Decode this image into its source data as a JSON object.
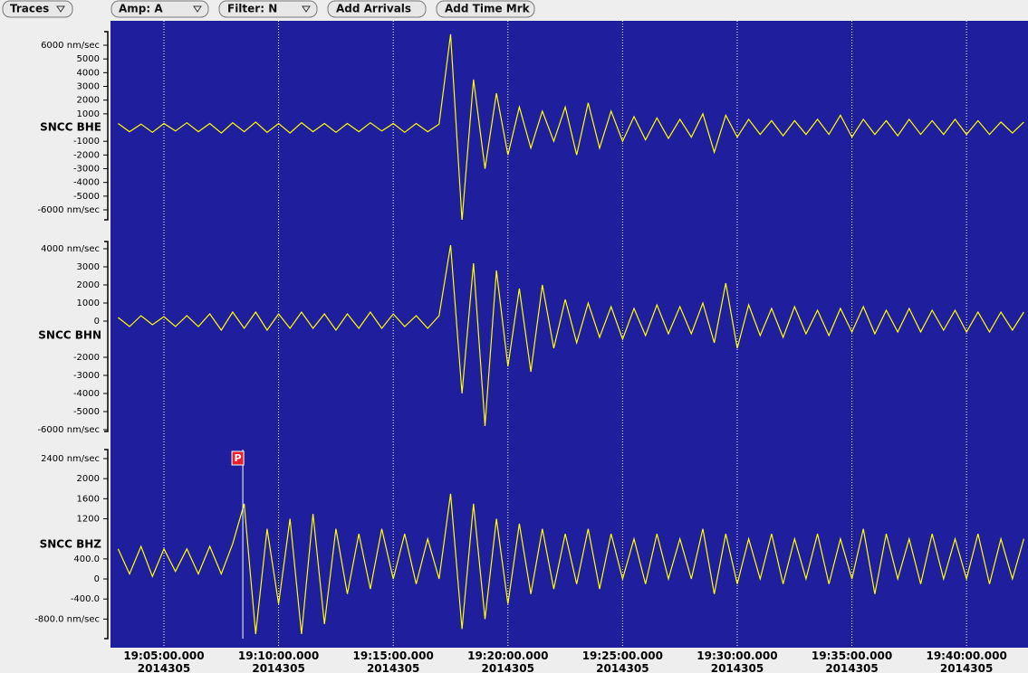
{
  "toolbar": {
    "buttons": [
      "Traces",
      "Amp: A",
      "Filter: N",
      "Add Arrivals",
      "Add Time Mrk"
    ]
  },
  "xlim": [
    1142.67,
    1182.68
  ],
  "xticks": [
    {
      "value": 1145,
      "label": "19:05:00.000"
    },
    {
      "value": 1150,
      "label": "19:10:00.000"
    },
    {
      "value": 1155,
      "label": "19:15:00.000"
    },
    {
      "value": 1160,
      "label": "19:20:00.000"
    },
    {
      "value": 1165,
      "label": "19:25:00.000"
    },
    {
      "value": 1170,
      "label": "19:30:00.000"
    },
    {
      "value": 1175,
      "label": "19:35:00.000"
    },
    {
      "value": 1180,
      "label": "19:40:00.000"
    }
  ],
  "xtick_dates": [
    "2014305",
    "2014305",
    "2014305",
    "2014305",
    "2014305",
    "2014305",
    "2014305",
    "2014305"
  ],
  "trace_times": [
    1143,
    1143.5,
    1144,
    1144.5,
    1145,
    1145.5,
    1146,
    1146.5,
    1147,
    1147.5,
    1148,
    1148.5,
    1149,
    1149.5,
    1150,
    1150.5,
    1151,
    1151.5,
    1152,
    1152.5,
    1153,
    1153.5,
    1154,
    1154.5,
    1155,
    1155.5,
    1156,
    1156.5,
    1157,
    1157.5,
    1158,
    1158.5,
    1159,
    1159.5,
    1160,
    1160.5,
    1161,
    1161.5,
    1162,
    1162.5,
    1163,
    1163.5,
    1164,
    1164.5,
    1165,
    1165.5,
    1166,
    1166.5,
    1167,
    1167.5,
    1168,
    1168.5,
    1169,
    1169.5,
    1170,
    1170.5,
    1171,
    1171.5,
    1172,
    1172.5,
    1173,
    1173.5,
    1174,
    1174.5,
    1175,
    1175.5,
    1176,
    1176.5,
    1177,
    1177.5,
    1178,
    1178.5,
    1179,
    1179.5,
    1180,
    1180.5,
    1181,
    1181.5,
    1182,
    1182.5
  ],
  "panels": [
    {
      "channel": "SNCC BHE",
      "ylim": [
        -6725,
        6990
      ],
      "yticks": [
        {
          "value": 6000,
          "label": "6000 nm/sec"
        },
        5000,
        4000,
        3000,
        2000,
        1000,
        -1000,
        -2000,
        -3000,
        -4000,
        -5000,
        {
          "value": -6000,
          "label": "-6000 nm/sec"
        }
      ],
      "trace": [
        300,
        -300,
        250,
        -350,
        300,
        -250,
        350,
        -300,
        300,
        -400,
        350,
        -300,
        400,
        -350,
        300,
        -400,
        350,
        -300,
        300,
        -350,
        300,
        -300,
        350,
        -250,
        300,
        -350,
        300,
        -300,
        250,
        6800,
        -6800,
        3500,
        -3000,
        2500,
        -2000,
        1500,
        -1500,
        1200,
        -1000,
        1500,
        -2000,
        1800,
        -1500,
        1200,
        -1000,
        800,
        -900,
        700,
        -800,
        600,
        -700,
        1000,
        -1800,
        900,
        -700,
        600,
        -500,
        500,
        -600,
        500,
        -500,
        600,
        -500,
        900,
        -700,
        600,
        -500,
        500,
        -600,
        600,
        -500,
        500,
        -500,
        600,
        -500,
        500,
        -500,
        400,
        -400,
        400
      ]
    },
    {
      "channel": "SNCC BHN",
      "ylim": [
        -6100,
        4400
      ],
      "yticks": [
        {
          "value": 4000,
          "label": "4000 nm/sec"
        },
        3000,
        2000,
        1000,
        0,
        -2000,
        -3000,
        -4000,
        -5000,
        {
          "value": -6000,
          "label": "-6000 nm/sec"
        }
      ],
      "trace": [
        200,
        -300,
        300,
        -200,
        250,
        -300,
        300,
        -300,
        400,
        -500,
        500,
        -400,
        500,
        -500,
        400,
        -400,
        500,
        -400,
        400,
        -500,
        400,
        -400,
        500,
        -400,
        400,
        -300,
        300,
        -400,
        300,
        4200,
        -4000,
        3200,
        -5800,
        2800,
        -2500,
        1800,
        -2800,
        2000,
        -1500,
        1200,
        -1200,
        1000,
        -900,
        800,
        -1000,
        700,
        -800,
        900,
        -700,
        800,
        -700,
        1000,
        -1200,
        2100,
        -1500,
        900,
        -800,
        700,
        -900,
        800,
        -700,
        600,
        -800,
        700,
        -600,
        800,
        -700,
        600,
        -600,
        700,
        -600,
        600,
        -500,
        600,
        -600,
        500,
        -600,
        500,
        -500,
        500
      ]
    },
    {
      "channel": "SNCC BHZ",
      "ylim": [
        -1190,
        2580
      ],
      "yticks": [
        {
          "value": 2400,
          "label": "2400 nm/sec"
        },
        2000,
        1600,
        1200,
        {
          "value": 400,
          "label": "400.0"
        },
        0,
        {
          "value": -400,
          "label": "-400.0"
        },
        {
          "value": -800,
          "label": "-800.0 nm/sec"
        }
      ],
      "arrivals": [
        {
          "label": "P",
          "time": 1148.44
        }
      ],
      "trace": [
        600,
        100,
        650,
        50,
        600,
        150,
        600,
        100,
        650,
        100,
        700,
        1500,
        -1100,
        1000,
        -500,
        1200,
        -1100,
        1300,
        -900,
        1000,
        -300,
        900,
        -200,
        1000,
        0,
        900,
        -100,
        800,
        0,
        1700,
        -1000,
        1500,
        -800,
        1200,
        -500,
        1100,
        -300,
        1000,
        -200,
        900,
        -100,
        1000,
        -200,
        900,
        0,
        800,
        -100,
        900,
        0,
        800,
        0,
        1000,
        -300,
        900,
        -100,
        800,
        0,
        900,
        -100,
        800,
        0,
        900,
        -100,
        800,
        0,
        1000,
        -300,
        900,
        0,
        800,
        -100,
        900,
        0,
        800,
        0,
        900,
        -100,
        800,
        0,
        800
      ]
    }
  ]
}
